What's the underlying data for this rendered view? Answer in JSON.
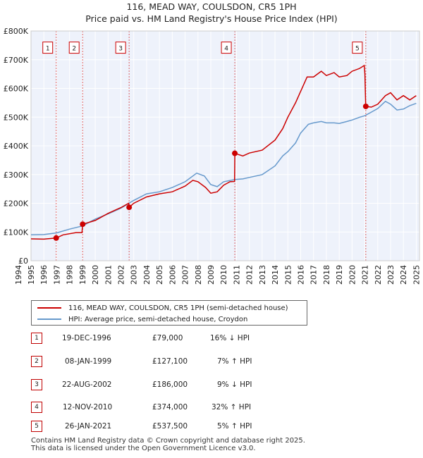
{
  "chart_data": {
    "type": "line",
    "title": "116, MEAD WAY, COULSDON, CR5 1PH",
    "subtitle": "Price paid vs. HM Land Registry's House Price Index (HPI)",
    "xlim": [
      1995.0,
      2025.25
    ],
    "ylim": [
      0,
      800000
    ],
    "x_ticks": [
      1994,
      1995,
      1996,
      1997,
      1998,
      1999,
      2000,
      2001,
      2002,
      2003,
      2004,
      2005,
      2006,
      2007,
      2008,
      2009,
      2010,
      2011,
      2012,
      2013,
      2014,
      2015,
      2016,
      2017,
      2018,
      2019,
      2020,
      2021,
      2022,
      2023,
      2024,
      2025
    ],
    "y_ticks": [
      {
        "value": 0,
        "label": "£0"
      },
      {
        "value": 100000,
        "label": "£100K"
      },
      {
        "value": 200000,
        "label": "£200K"
      },
      {
        "value": 300000,
        "label": "£300K"
      },
      {
        "value": 400000,
        "label": "£400K"
      },
      {
        "value": 500000,
        "label": "£500K"
      },
      {
        "value": 600000,
        "label": "£600K"
      },
      {
        "value": 700000,
        "label": "£700K"
      },
      {
        "value": 800000,
        "label": "£800K"
      }
    ],
    "series": [
      {
        "name": "116, MEAD WAY, COULSDON, CR5 1PH (semi-detached house)",
        "color": "#cc0000",
        "points": [
          [
            1995.0,
            76000
          ],
          [
            1996.0,
            75000
          ],
          [
            1996.96,
            79000
          ],
          [
            1997.5,
            90000
          ],
          [
            1998.5,
            98000
          ],
          [
            1998.97,
            98000
          ],
          [
            1999.02,
            127100
          ],
          [
            2000.0,
            140000
          ],
          [
            2001.0,
            165000
          ],
          [
            2002.0,
            185000
          ],
          [
            2002.6,
            200000
          ],
          [
            2002.65,
            186000
          ],
          [
            2003.0,
            200000
          ],
          [
            2004.0,
            222000
          ],
          [
            2005.0,
            233000
          ],
          [
            2006.0,
            240000
          ],
          [
            2007.0,
            260000
          ],
          [
            2007.6,
            280000
          ],
          [
            2008.0,
            275000
          ],
          [
            2008.6,
            255000
          ],
          [
            2009.0,
            235000
          ],
          [
            2009.5,
            240000
          ],
          [
            2010.0,
            263000
          ],
          [
            2010.5,
            275000
          ],
          [
            2010.85,
            276000
          ],
          [
            2010.87,
            374000
          ],
          [
            2011.5,
            365000
          ],
          [
            2012.0,
            375000
          ],
          [
            2013.0,
            385000
          ],
          [
            2014.0,
            420000
          ],
          [
            2014.6,
            460000
          ],
          [
            2015.0,
            500000
          ],
          [
            2015.6,
            550000
          ],
          [
            2016.0,
            590000
          ],
          [
            2016.5,
            640000
          ],
          [
            2017.0,
            640000
          ],
          [
            2017.6,
            660000
          ],
          [
            2018.0,
            645000
          ],
          [
            2018.6,
            655000
          ],
          [
            2019.0,
            640000
          ],
          [
            2019.6,
            645000
          ],
          [
            2020.0,
            660000
          ],
          [
            2020.6,
            670000
          ],
          [
            2020.95,
            680000
          ],
          [
            2021.0,
            650000
          ],
          [
            2021.06,
            537500
          ],
          [
            2021.5,
            535000
          ],
          [
            2022.0,
            545000
          ],
          [
            2022.6,
            575000
          ],
          [
            2023.0,
            585000
          ],
          [
            2023.5,
            560000
          ],
          [
            2024.0,
            575000
          ],
          [
            2024.5,
            560000
          ],
          [
            2025.0,
            575000
          ]
        ]
      },
      {
        "name": "HPI: Average price, semi-detached house, Croydon",
        "color": "#6699cc",
        "points": [
          [
            1995.0,
            90000
          ],
          [
            1996.0,
            91000
          ],
          [
            1997.0,
            97000
          ],
          [
            1998.0,
            110000
          ],
          [
            1999.0,
            121000
          ],
          [
            2000.0,
            145000
          ],
          [
            2001.0,
            163000
          ],
          [
            2002.0,
            183000
          ],
          [
            2003.0,
            210000
          ],
          [
            2004.0,
            233000
          ],
          [
            2005.0,
            240000
          ],
          [
            2006.0,
            255000
          ],
          [
            2007.0,
            275000
          ],
          [
            2007.9,
            305000
          ],
          [
            2008.5,
            295000
          ],
          [
            2009.0,
            265000
          ],
          [
            2009.5,
            258000
          ],
          [
            2010.0,
            275000
          ],
          [
            2010.9,
            283000
          ],
          [
            2011.5,
            285000
          ],
          [
            2012.0,
            290000
          ],
          [
            2013.0,
            300000
          ],
          [
            2014.0,
            330000
          ],
          [
            2014.6,
            365000
          ],
          [
            2015.0,
            380000
          ],
          [
            2015.6,
            410000
          ],
          [
            2016.0,
            445000
          ],
          [
            2016.6,
            475000
          ],
          [
            2017.0,
            480000
          ],
          [
            2017.6,
            485000
          ],
          [
            2018.0,
            480000
          ],
          [
            2018.6,
            480000
          ],
          [
            2019.0,
            478000
          ],
          [
            2019.6,
            485000
          ],
          [
            2020.0,
            490000
          ],
          [
            2020.6,
            500000
          ],
          [
            2021.0,
            505000
          ],
          [
            2021.6,
            520000
          ],
          [
            2022.0,
            530000
          ],
          [
            2022.6,
            555000
          ],
          [
            2023.0,
            545000
          ],
          [
            2023.5,
            525000
          ],
          [
            2024.0,
            528000
          ],
          [
            2024.5,
            540000
          ],
          [
            2025.0,
            548000
          ]
        ]
      }
    ],
    "sales": [
      {
        "num": "1",
        "x": 1996.96,
        "y": 79000
      },
      {
        "num": "2",
        "x": 1999.02,
        "y": 127100
      },
      {
        "num": "3",
        "x": 2002.64,
        "y": 186000
      },
      {
        "num": "4",
        "x": 2010.87,
        "y": 374000
      },
      {
        "num": "5",
        "x": 2021.07,
        "y": 537500
      }
    ],
    "label_box_y": 720000
  },
  "legend": {
    "property_label": "116, MEAD WAY, COULSDON, CR5 1PH (semi-detached house)",
    "hpi_label": "HPI: Average price, semi-detached house, Croydon"
  },
  "sales_table": [
    {
      "num": "1",
      "date": "19-DEC-1996",
      "price": "£79,000",
      "hpi": "16% ↓ HPI"
    },
    {
      "num": "2",
      "date": "08-JAN-1999",
      "price": "£127,100",
      "hpi": "7% ↑ HPI"
    },
    {
      "num": "3",
      "date": "22-AUG-2002",
      "price": "£186,000",
      "hpi": "9% ↓ HPI"
    },
    {
      "num": "4",
      "date": "12-NOV-2010",
      "price": "£374,000",
      "hpi": "32% ↑ HPI"
    },
    {
      "num": "5",
      "date": "26-JAN-2021",
      "price": "£537,500",
      "hpi": "5% ↑ HPI"
    }
  ],
  "footer": {
    "line1": "Contains HM Land Registry data © Crown copyright and database right 2025.",
    "line2": "This data is licensed under the Open Government Licence v3.0."
  },
  "colors": {
    "property": "#cc0000",
    "hpi": "#6699cc",
    "grid": "#dddddd",
    "background": "#eef2fb"
  }
}
